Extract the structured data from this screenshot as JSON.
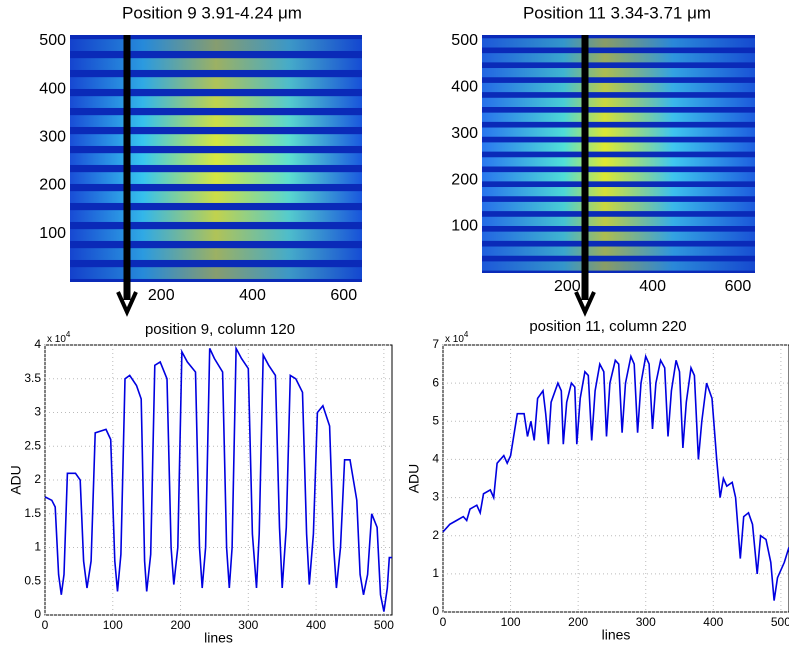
{
  "chart_data": [
    {
      "type": "image",
      "title": "Position 9  3.91-4.24 μm",
      "xlim": [
        0,
        640
      ],
      "ylim": [
        0,
        512
      ],
      "xticks": [
        200,
        400,
        600
      ],
      "yticks": [
        100,
        200,
        300,
        400,
        500
      ],
      "stripes": 13
    },
    {
      "type": "image",
      "title": "Position 11  3.34-3.71 μm",
      "xlim": [
        0,
        640
      ],
      "ylim": [
        0,
        512
      ],
      "xticks": [
        200,
        400,
        600
      ],
      "yticks": [
        100,
        200,
        300,
        400,
        500
      ],
      "stripes": 16
    },
    {
      "type": "line",
      "title": "position 9, column 120",
      "xlabel": "lines",
      "ylabel": "ADU",
      "y_multiplier": "x 10",
      "y_multiplier_exponent": "4",
      "color": "#0000e0",
      "grid": true,
      "xlim": [
        0,
        512
      ],
      "ylim": [
        0,
        4
      ],
      "xticks": [
        0,
        100,
        200,
        300,
        400,
        500
      ],
      "yticks": [
        0,
        0.5,
        1,
        1.5,
        2,
        2.5,
        3,
        3.5,
        4
      ],
      "x": [
        0,
        10,
        15,
        20,
        24,
        28,
        33,
        45,
        52,
        57,
        62,
        68,
        74,
        90,
        97,
        103,
        107,
        112,
        118,
        125,
        135,
        142,
        147,
        150,
        156,
        162,
        170,
        180,
        186,
        190,
        196,
        202,
        210,
        222,
        228,
        232,
        237,
        243,
        250,
        262,
        268,
        272,
        276,
        282,
        290,
        300,
        306,
        312,
        316,
        322,
        330,
        340,
        346,
        350,
        356,
        362,
        370,
        380,
        386,
        390,
        396,
        402,
        410,
        420,
        426,
        430,
        436,
        442,
        450,
        460,
        465,
        470,
        476,
        482,
        490,
        495,
        500,
        505,
        508,
        512
      ],
      "values": [
        1.75,
        1.7,
        1.6,
        0.6,
        0.3,
        0.6,
        2.1,
        2.1,
        2.0,
        0.8,
        0.4,
        0.8,
        2.7,
        2.75,
        2.6,
        0.8,
        0.35,
        0.9,
        3.5,
        3.55,
        3.4,
        3.2,
        0.8,
        0.35,
        0.9,
        3.7,
        3.75,
        3.5,
        1.0,
        0.45,
        1.0,
        3.9,
        3.75,
        3.6,
        1.0,
        0.4,
        1.0,
        3.95,
        3.8,
        3.6,
        1.0,
        0.4,
        1.0,
        3.95,
        3.8,
        3.65,
        1.2,
        0.4,
        1.2,
        3.85,
        3.7,
        3.55,
        1.3,
        0.4,
        1.3,
        3.55,
        3.5,
        3.3,
        1.2,
        0.45,
        1.2,
        3.0,
        3.1,
        2.8,
        1.0,
        0.4,
        1.0,
        2.3,
        2.3,
        1.7,
        0.6,
        0.3,
        0.6,
        1.5,
        1.3,
        0.3,
        0.05,
        0.4,
        0.85,
        0.85
      ]
    },
    {
      "type": "line",
      "title": "position 11, column 220",
      "xlabel": "lines",
      "ylabel": "ADU",
      "y_multiplier": "x 10",
      "y_multiplier_exponent": "4",
      "color": "#0000e0",
      "grid": true,
      "xlim": [
        0,
        512
      ],
      "ylim": [
        0,
        7
      ],
      "xticks": [
        0,
        100,
        200,
        300,
        400,
        500
      ],
      "yticks": [
        0,
        1,
        2,
        3,
        4,
        5,
        6,
        7
      ],
      "x": [
        0,
        10,
        20,
        30,
        35,
        40,
        50,
        55,
        60,
        70,
        75,
        80,
        90,
        95,
        100,
        110,
        120,
        125,
        130,
        135,
        140,
        148,
        152,
        156,
        160,
        170,
        175,
        178,
        183,
        190,
        195,
        198,
        203,
        210,
        215,
        220,
        225,
        232,
        238,
        242,
        247,
        255,
        260,
        265,
        270,
        278,
        283,
        288,
        293,
        300,
        305,
        310,
        315,
        322,
        328,
        333,
        338,
        345,
        350,
        355,
        360,
        367,
        372,
        378,
        383,
        390,
        398,
        405,
        410,
        415,
        420,
        428,
        433,
        440,
        445,
        452,
        458,
        465,
        470,
        478,
        485,
        490,
        495,
        505,
        512
      ],
      "values": [
        2.1,
        2.3,
        2.4,
        2.5,
        2.4,
        2.7,
        2.8,
        2.6,
        3.1,
        3.2,
        3.0,
        3.9,
        4.1,
        3.9,
        4.1,
        5.2,
        5.2,
        4.6,
        5.0,
        4.5,
        5.6,
        5.8,
        5.2,
        4.4,
        5.5,
        6.0,
        5.8,
        4.4,
        5.5,
        6.0,
        5.9,
        4.4,
        5.6,
        6.3,
        6.2,
        4.5,
        5.8,
        6.5,
        6.3,
        4.6,
        6.0,
        6.6,
        6.5,
        4.7,
        6.0,
        6.7,
        6.5,
        4.7,
        6.0,
        6.7,
        6.5,
        4.8,
        6.0,
        6.6,
        6.4,
        4.6,
        5.8,
        6.6,
        6.3,
        4.3,
        5.5,
        6.4,
        6.2,
        4.0,
        5.0,
        6.0,
        5.6,
        4.0,
        3.0,
        3.5,
        3.3,
        3.4,
        3.0,
        1.4,
        2.5,
        2.6,
        2.3,
        1.0,
        2.0,
        1.9,
        1.3,
        0.3,
        0.9,
        1.3,
        1.7
      ]
    }
  ]
}
